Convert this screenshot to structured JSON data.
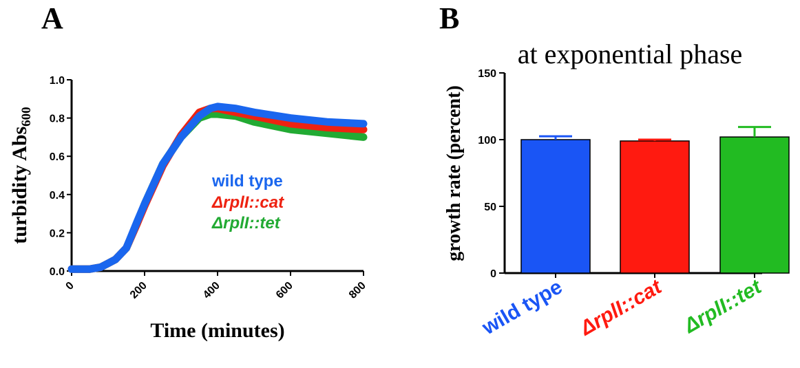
{
  "panels": {
    "a_label": "A",
    "b_label": "B"
  },
  "chart_data": [
    {
      "type": "line",
      "title": "",
      "xlabel": "Time (minutes)",
      "ylabel_main": "turbidity Abs",
      "ylabel_sub": "600",
      "xlim": [
        0,
        800
      ],
      "ylim": [
        0,
        1.0
      ],
      "x_ticks": [
        "0",
        "200",
        "400",
        "600",
        "800"
      ],
      "y_ticks": [
        "0.0",
        "0.2",
        "0.4",
        "0.6",
        "0.8",
        "1.0"
      ],
      "grid": false,
      "legend_position": "center-right",
      "series": [
        {
          "name": "ΔrplI::tet",
          "color": "#22aa33",
          "x": [
            0,
            50,
            80,
            100,
            120,
            150,
            180,
            200,
            250,
            300,
            350,
            380,
            400,
            450,
            500,
            600,
            700,
            800
          ],
          "y": [
            0.01,
            0.01,
            0.02,
            0.04,
            0.06,
            0.12,
            0.25,
            0.35,
            0.56,
            0.7,
            0.8,
            0.82,
            0.82,
            0.81,
            0.78,
            0.74,
            0.72,
            0.7
          ]
        },
        {
          "name": "ΔrplI::cat",
          "color": "#ee2211",
          "x": [
            0,
            50,
            80,
            100,
            120,
            150,
            180,
            200,
            250,
            300,
            350,
            380,
            400,
            450,
            500,
            600,
            700,
            800
          ],
          "y": [
            0.01,
            0.01,
            0.02,
            0.04,
            0.06,
            0.12,
            0.25,
            0.34,
            0.55,
            0.71,
            0.83,
            0.85,
            0.85,
            0.83,
            0.81,
            0.77,
            0.75,
            0.74
          ]
        },
        {
          "name": "wild type",
          "color": "#1a66ee",
          "x": [
            0,
            50,
            80,
            100,
            120,
            150,
            180,
            200,
            250,
            300,
            350,
            380,
            400,
            450,
            500,
            600,
            700,
            800
          ],
          "y": [
            0.01,
            0.01,
            0.02,
            0.04,
            0.06,
            0.12,
            0.26,
            0.35,
            0.56,
            0.7,
            0.81,
            0.85,
            0.86,
            0.85,
            0.83,
            0.8,
            0.78,
            0.77
          ]
        }
      ],
      "legend": [
        {
          "name": "wild type",
          "color": "#1a66ee"
        },
        {
          "name": "ΔrplI::cat",
          "color": "#ee2211"
        },
        {
          "name": "ΔrplI::tet",
          "color": "#22aa33"
        }
      ]
    },
    {
      "type": "bar",
      "title": "at exponential phase",
      "xlabel": "",
      "ylabel": "growth rate (percent)",
      "ylim": [
        0,
        150
      ],
      "y_ticks": [
        "0",
        "50",
        "100",
        "150"
      ],
      "grid": false,
      "categories": [
        "wild type",
        "ΔrplI::cat",
        "ΔrplI::tet"
      ],
      "values": [
        100,
        99,
        102
      ],
      "errors": [
        2.5,
        1,
        7.5
      ],
      "colors": [
        "#1a55f5",
        "#ff1a10",
        "#22bb22"
      ]
    }
  ]
}
